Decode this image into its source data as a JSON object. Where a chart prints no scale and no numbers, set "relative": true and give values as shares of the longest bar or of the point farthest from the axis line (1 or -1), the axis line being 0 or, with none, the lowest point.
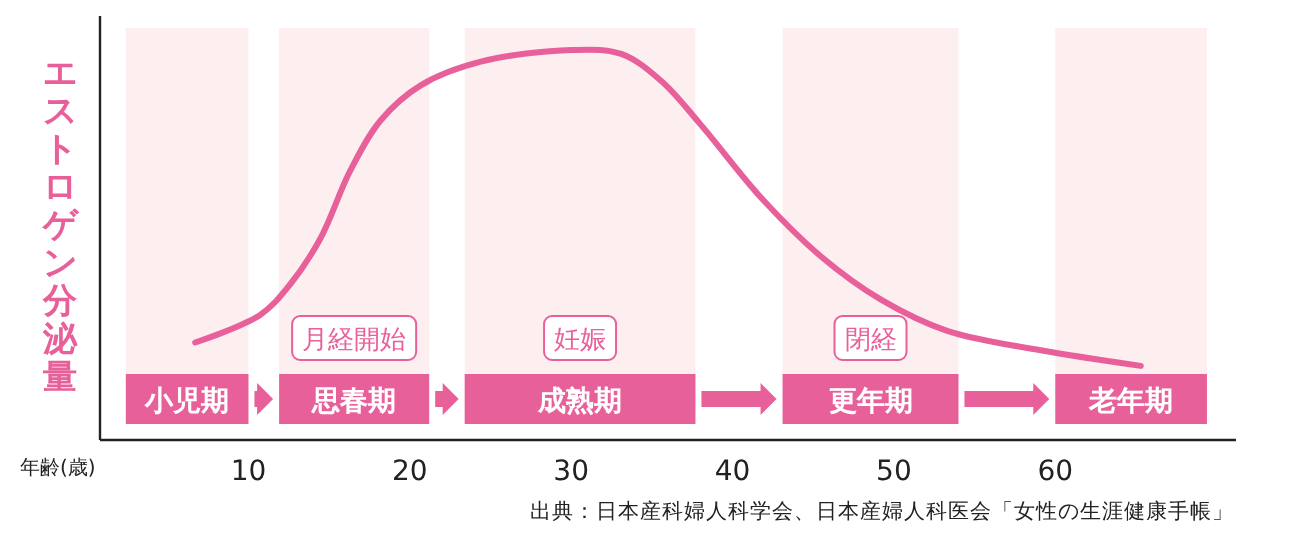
{
  "chart_data": {
    "type": "line",
    "relative": true,
    "ylabel": "エストロゲン分泌量",
    "xlabel": "年齢(歳)",
    "x": [
      6.7,
      10.7,
      12.6,
      14.5,
      16.3,
      18.2,
      20.7,
      24.4,
      30,
      33.1,
      35.6,
      38,
      41.8,
      45.5,
      49.2,
      53.3,
      59.1,
      65.3
    ],
    "series": [
      {
        "color": "#e8609a",
        "values": [
          0.25,
          0.32,
          0.4,
          0.52,
          0.69,
          0.82,
          0.91,
          0.97,
          1,
          0.99,
          0.92,
          0.81,
          0.62,
          0.47,
          0.36,
          0.28,
          0.23,
          0.19
        ]
      }
    ],
    "xlim": [
      0.8,
      71.2
    ],
    "xticks": [
      10,
      20,
      30,
      40,
      50,
      60
    ],
    "grid": false,
    "marker": "none",
    "line_style": "solid",
    "bands": [
      {
        "axis": "x",
        "from": 2.4,
        "to": 10,
        "label": "小児期",
        "color": "#fdeef0"
      },
      {
        "axis": "x",
        "from": 11.9,
        "to": 21.2,
        "label": "思春期",
        "color": "#fdeef0"
      },
      {
        "axis": "x",
        "from": 23.4,
        "to": 37.7,
        "label": "成熟期",
        "color": "#fdeef0"
      },
      {
        "axis": "x",
        "from": 43.1,
        "to": 54,
        "label": "更年期",
        "color": "#fdeef0"
      },
      {
        "axis": "x",
        "from": 60,
        "to": 69.4,
        "label": "老年期",
        "color": "#fdeef0"
      }
    ],
    "annotations": [
      "月経開始",
      "妊娠",
      "閉経",
      "出典：日本産科婦人科学会、日本産婦人科医会「女性の生涯健康手帳」"
    ]
  }
}
